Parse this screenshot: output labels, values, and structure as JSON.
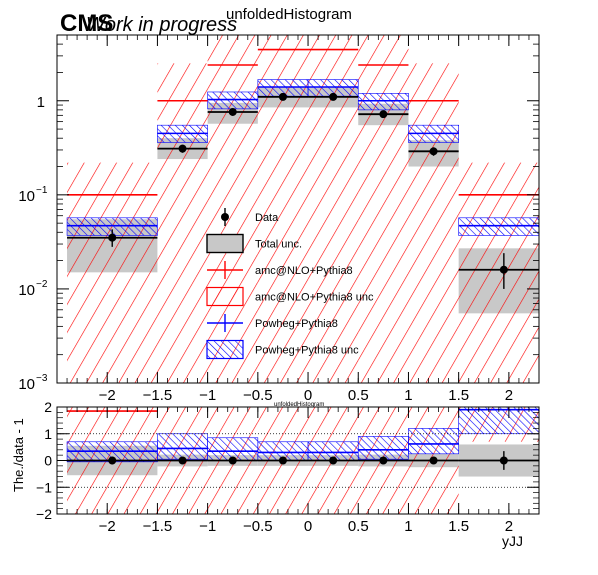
{
  "header": {
    "cms": "CMS",
    "status": "Work in progress",
    "title": "unfoldedHistogram",
    "ratio_title": "unfoldedHistogram"
  },
  "colors": {
    "data": "#000000",
    "total_unc": "#c8c8c8",
    "amc": "#ff0000",
    "powheg": "#0000ff"
  },
  "legend": {
    "items": [
      {
        "label": "Data",
        "style": "marker"
      },
      {
        "label": "Total unc.",
        "style": "gray-box"
      },
      {
        "label": "amc@NLO+Pythia8",
        "style": "red-cross"
      },
      {
        "label": "amc@NLO+Pythia8 unc",
        "style": "red-hatch"
      },
      {
        "label": "Powheg+Pythia8",
        "style": "blue-cross"
      },
      {
        "label": "Powheg+Pythia8 unc",
        "style": "blue-hatch"
      }
    ]
  },
  "chart_data": [
    {
      "type": "histogram",
      "panel": "main",
      "xlabel": "yJJ",
      "ylabel": "",
      "xlim": [
        -2.5,
        2.3
      ],
      "ylim": [
        0.001,
        5
      ],
      "log_y": true,
      "x_ticks": [
        "−2",
        "−1.5",
        "−1",
        "−0.5",
        "0",
        "0.5",
        "1",
        "1.5",
        "2"
      ],
      "x_tick_values": [
        -2,
        -1.5,
        -1,
        -0.5,
        0,
        0.5,
        1,
        1.5,
        2
      ],
      "bin_edges": [
        -2.4,
        -1.5,
        -1,
        -0.5,
        0,
        0.5,
        1,
        1.5,
        2.3
      ],
      "data": {
        "x": [
          -1.95,
          -1.25,
          -0.75,
          -0.25,
          0.25,
          0.75,
          1.25,
          1.95
        ],
        "y": [
          0.035,
          0.31,
          0.76,
          1.1,
          1.1,
          0.72,
          0.29,
          0.016
        ],
        "err_lo": [
          0.028,
          0.28,
          0.7,
          1.02,
          1.02,
          0.66,
          0.26,
          0.01
        ],
        "err_hi": [
          0.043,
          0.34,
          0.82,
          1.18,
          1.18,
          0.78,
          0.32,
          0.024
        ]
      },
      "total_unc": {
        "lo": [
          0.015,
          0.24,
          0.57,
          0.85,
          0.85,
          0.55,
          0.2,
          0.0055
        ],
        "hi": [
          0.055,
          0.4,
          0.95,
          1.4,
          1.4,
          0.93,
          0.38,
          0.027
        ]
      },
      "series": [
        {
          "name": "amc@NLO+Pythia8",
          "values": [
            0.1,
            1.0,
            2.4,
            3.5,
            3.5,
            2.4,
            1.0,
            0.1
          ],
          "unc_lo": [
            0.001,
            0.001,
            0.001,
            0.001,
            0.001,
            0.001,
            0.001,
            0.001
          ],
          "unc_hi": [
            0.22,
            2.5,
            5,
            5,
            5,
            5,
            2.5,
            0.22
          ]
        },
        {
          "name": "Powheg+Pythia8",
          "values": [
            0.047,
            0.45,
            1.03,
            1.4,
            1.4,
            1.0,
            0.45,
            0.047
          ],
          "unc_lo": [
            0.037,
            0.36,
            0.82,
            1.12,
            1.12,
            0.8,
            0.36,
            0.037
          ],
          "unc_hi": [
            0.057,
            0.55,
            1.24,
            1.68,
            1.68,
            1.2,
            0.55,
            0.057
          ]
        }
      ],
      "y_ticks": [
        {
          "value": 0.001,
          "base": "10",
          "exp": "−3"
        },
        {
          "value": 0.01,
          "base": "10",
          "exp": "−2"
        },
        {
          "value": 0.1,
          "base": "10",
          "exp": "−1"
        },
        {
          "value": 1,
          "base": "1",
          "exp": ""
        }
      ]
    },
    {
      "type": "histogram",
      "panel": "ratio",
      "xlabel": "yJJ",
      "ylabel": "The./data - 1",
      "xlim": [
        -2.5,
        2.3
      ],
      "ylim": [
        -2,
        2
      ],
      "y_ticks": [
        "−2",
        "−1",
        "0",
        "1",
        "2"
      ],
      "y_tick_values": [
        -2,
        -1,
        0,
        1,
        2
      ],
      "x_ticks": [
        "−2",
        "−1.5",
        "−1",
        "−0.5",
        "0",
        "0.5",
        "1",
        "1.5",
        "2"
      ],
      "x_tick_values": [
        -2,
        -1.5,
        -1,
        -0.5,
        0,
        0.5,
        1,
        1.5,
        2
      ],
      "bin_edges": [
        -2.4,
        -1.5,
        -1,
        -0.5,
        0,
        0.5,
        1,
        1.5,
        2.3
      ],
      "data": {
        "x": [
          -1.95,
          -1.25,
          -0.75,
          -0.25,
          0.25,
          0.75,
          1.25,
          1.95
        ],
        "y": [
          0,
          0,
          0,
          0,
          0,
          0,
          0,
          0
        ],
        "err": [
          0.15,
          0.05,
          0.05,
          0.04,
          0.04,
          0.05,
          0.06,
          0.35
        ]
      },
      "total_unc": {
        "lo": [
          -0.55,
          -0.22,
          -0.2,
          -0.2,
          -0.2,
          -0.22,
          -0.25,
          -0.6
        ],
        "hi": [
          0.55,
          0.22,
          0.2,
          0.2,
          0.2,
          0.22,
          0.25,
          0.6
        ]
      },
      "series": [
        {
          "name": "amc@NLO+Pythia8",
          "values": [
            1.85,
            2.2,
            2.2,
            2.2,
            2.2,
            2.2,
            2.2,
            2.2
          ],
          "unc_lo": [
            -2,
            -2,
            -2,
            -2,
            -2,
            -2,
            -2,
            0.7
          ],
          "unc_hi": [
            2,
            2,
            2,
            2,
            2,
            2,
            2,
            2
          ]
        },
        {
          "name": "Powheg+Pythia8",
          "values": [
            0.35,
            0.45,
            0.35,
            0.3,
            0.3,
            0.4,
            0.62,
            1.9
          ],
          "unc_lo": [
            -0.05,
            0.05,
            0.0,
            0.0,
            0.0,
            0.05,
            0.25,
            1.0
          ],
          "unc_hi": [
            0.7,
            1.0,
            0.85,
            0.7,
            0.7,
            0.9,
            1.2,
            2.0
          ]
        }
      ],
      "gridlines_y": [
        -1,
        1
      ]
    }
  ]
}
